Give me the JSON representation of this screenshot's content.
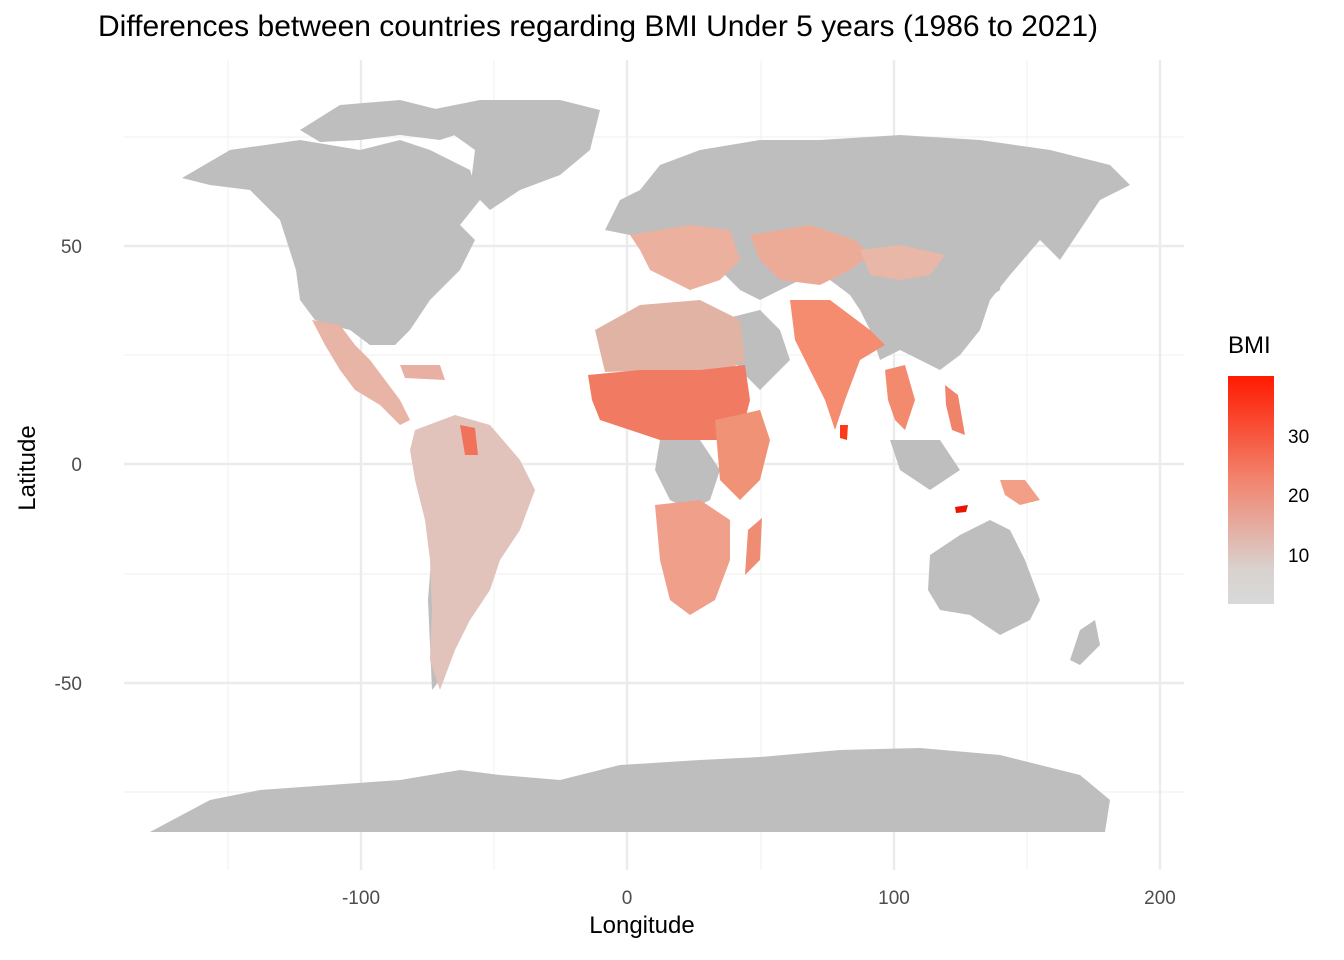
{
  "title": "Differences between countries regarding BMI Under 5 years (1986 to 2021)",
  "x_axis": {
    "label": "Longitude",
    "ticks": [
      "-100",
      "0",
      "100",
      "200"
    ]
  },
  "y_axis": {
    "label": "Latitude",
    "ticks": [
      "50",
      "0",
      "-50"
    ]
  },
  "legend": {
    "title": "BMI",
    "ticks": [
      "30",
      "20",
      "10"
    ]
  },
  "colors": {
    "land_no_data": "#bebebe",
    "scale_low": "#d9d9d9",
    "scale_high": "#ff1a00",
    "grid": "#ebebeb"
  },
  "chart_data": {
    "type": "choropleth",
    "fill_variable": "BMI",
    "xlim": [
      -180,
      200
    ],
    "ylim": [
      -90,
      85
    ],
    "scale_range": [
      2,
      39
    ],
    "grid": true
  }
}
